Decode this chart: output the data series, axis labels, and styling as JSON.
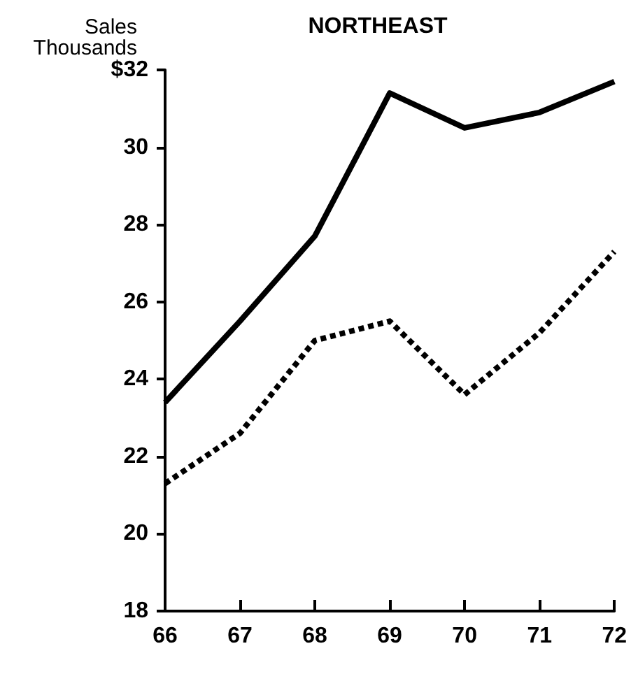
{
  "chart_data": {
    "type": "line",
    "title": "NORTHEAST",
    "ylabel": "Sales\nThousands",
    "x": [
      66,
      67,
      68,
      69,
      70,
      71,
      72
    ],
    "series": [
      {
        "color": "#000000",
        "line_style": "solid",
        "values": [
          23.4,
          25.5,
          27.7,
          31.4,
          30.5,
          30.9,
          31.7
        ]
      },
      {
        "color": "#000000",
        "line_style": "dashed",
        "values": [
          21.3,
          22.6,
          25.0,
          25.5,
          23.6,
          25.2,
          27.3
        ]
      }
    ],
    "xlim": [
      66,
      72
    ],
    "xticks": [
      66,
      67,
      68,
      69,
      70,
      71,
      72
    ],
    "ylim": [
      18,
      32
    ],
    "yticks": [
      18,
      20,
      22,
      24,
      26,
      28,
      30,
      {
        "value": 32,
        "label": "$32"
      }
    ],
    "grid": false,
    "marker": "none"
  }
}
